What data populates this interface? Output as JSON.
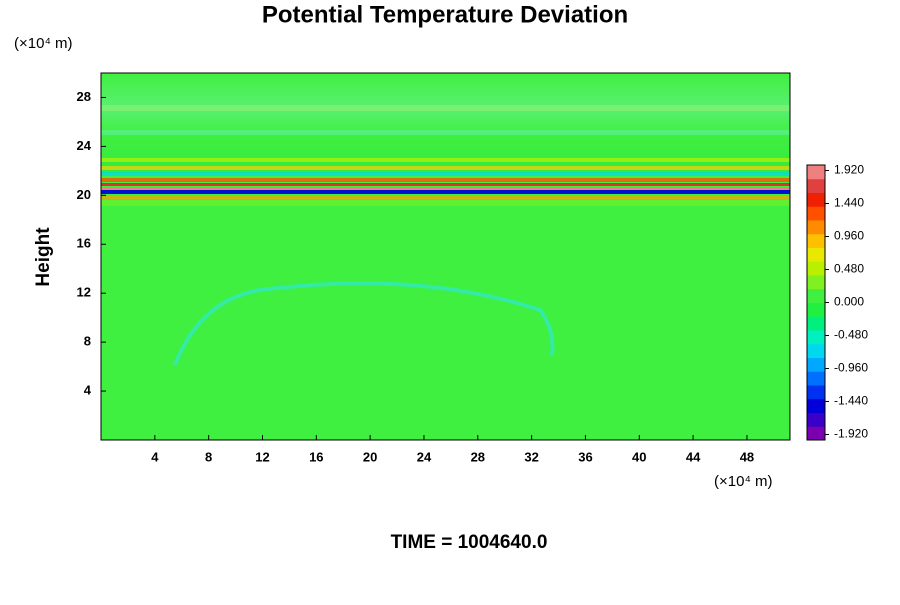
{
  "chart_data": {
    "type": "contour",
    "title": "Potential Temperature Deviation",
    "ylabel": "Height",
    "xunit": "(×10⁴ m)",
    "yunit": "(×10⁴ m)",
    "annotation": "TIME = 1004640.0",
    "xlim": [
      0,
      51.2
    ],
    "xticks": [
      4,
      8,
      12,
      16,
      20,
      24,
      28,
      32,
      36,
      40,
      44,
      48
    ],
    "ylim": [
      0,
      30
    ],
    "yticks": [
      4,
      8,
      12,
      16,
      20,
      24,
      28
    ],
    "clim": [
      -2.0,
      2.0
    ],
    "cticks": [
      {
        "value": 1.92,
        "label": "1.920"
      },
      {
        "value": 1.44,
        "label": "1.440"
      },
      {
        "value": 0.96,
        "label": "0.960"
      },
      {
        "value": 0.48,
        "label": "0.480"
      },
      {
        "value": 0,
        "label": "0.000"
      },
      {
        "value": -0.48,
        "label": "-0.480"
      },
      {
        "value": -0.96,
        "label": "-0.960"
      },
      {
        "value": -1.44,
        "label": "-1.440"
      },
      {
        "value": -1.92,
        "label": "-1.920"
      }
    ],
    "colorbar_colors": [
      "#7a00b0",
      "#3a00c8",
      "#0000d8",
      "#0030f0",
      "#0070ff",
      "#00a8ff",
      "#00d8f0",
      "#00f0c0",
      "#00f080",
      "#20f040",
      "#40f040",
      "#80f020",
      "#b8f000",
      "#e8e800",
      "#ffc000",
      "#ff8c00",
      "#ff5000",
      "#f02000",
      "#e04040",
      "#f08080"
    ]
  }
}
